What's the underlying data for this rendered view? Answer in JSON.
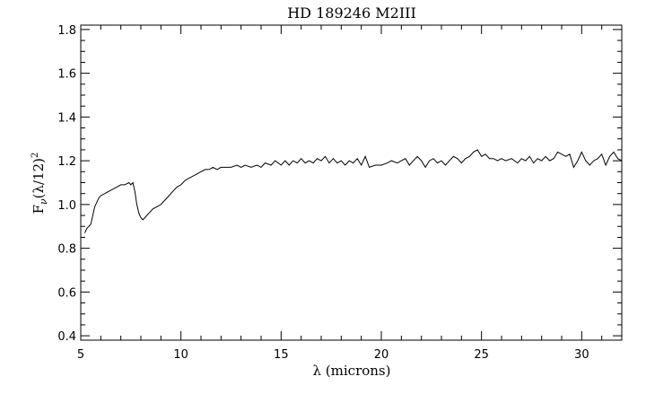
{
  "chart_data": {
    "type": "line",
    "title": "HD 189246  M2III",
    "xlabel": "λ (microns)",
    "ylabel": "F_ν(λ/12)²",
    "xlim": [
      5,
      32
    ],
    "ylim": [
      0.38,
      1.82
    ],
    "xticks": [
      5,
      10,
      15,
      20,
      25,
      30
    ],
    "yticks": [
      0.4,
      0.6,
      0.8,
      1.0,
      1.2,
      1.4,
      1.6,
      1.8
    ],
    "series": [
      {
        "color": "#000000",
        "points": [
          [
            5.2,
            0.87
          ],
          [
            5.3,
            0.89
          ],
          [
            5.4,
            0.9
          ],
          [
            5.5,
            0.91
          ],
          [
            5.6,
            0.95
          ],
          [
            5.7,
            0.99
          ],
          [
            5.8,
            1.01
          ],
          [
            5.9,
            1.03
          ],
          [
            6.0,
            1.04
          ],
          [
            6.2,
            1.05
          ],
          [
            6.4,
            1.06
          ],
          [
            6.6,
            1.07
          ],
          [
            6.8,
            1.08
          ],
          [
            7.0,
            1.09
          ],
          [
            7.2,
            1.09
          ],
          [
            7.4,
            1.1
          ],
          [
            7.5,
            1.09
          ],
          [
            7.6,
            1.1
          ],
          [
            7.7,
            1.06
          ],
          [
            7.8,
            1.0
          ],
          [
            7.9,
            0.96
          ],
          [
            8.0,
            0.94
          ],
          [
            8.1,
            0.93
          ],
          [
            8.2,
            0.94
          ],
          [
            8.4,
            0.96
          ],
          [
            8.6,
            0.98
          ],
          [
            8.8,
            0.99
          ],
          [
            9.0,
            1.0
          ],
          [
            9.2,
            1.02
          ],
          [
            9.4,
            1.04
          ],
          [
            9.6,
            1.06
          ],
          [
            9.8,
            1.08
          ],
          [
            10.0,
            1.09
          ],
          [
            10.2,
            1.11
          ],
          [
            10.4,
            1.12
          ],
          [
            10.6,
            1.13
          ],
          [
            10.8,
            1.14
          ],
          [
            11.0,
            1.15
          ],
          [
            11.2,
            1.16
          ],
          [
            11.4,
            1.16
          ],
          [
            11.6,
            1.17
          ],
          [
            11.8,
            1.16
          ],
          [
            12.0,
            1.17
          ],
          [
            12.2,
            1.17
          ],
          [
            12.5,
            1.17
          ],
          [
            12.8,
            1.18
          ],
          [
            13.0,
            1.17
          ],
          [
            13.2,
            1.18
          ],
          [
            13.5,
            1.17
          ],
          [
            13.8,
            1.18
          ],
          [
            14.0,
            1.17
          ],
          [
            14.2,
            1.19
          ],
          [
            14.5,
            1.18
          ],
          [
            14.7,
            1.2
          ],
          [
            15.0,
            1.18
          ],
          [
            15.2,
            1.2
          ],
          [
            15.4,
            1.18
          ],
          [
            15.6,
            1.2
          ],
          [
            15.8,
            1.19
          ],
          [
            16.0,
            1.21
          ],
          [
            16.2,
            1.19
          ],
          [
            16.4,
            1.2
          ],
          [
            16.6,
            1.19
          ],
          [
            16.8,
            1.21
          ],
          [
            17.0,
            1.2
          ],
          [
            17.2,
            1.22
          ],
          [
            17.4,
            1.19
          ],
          [
            17.6,
            1.21
          ],
          [
            17.8,
            1.19
          ],
          [
            18.0,
            1.2
          ],
          [
            18.2,
            1.18
          ],
          [
            18.4,
            1.2
          ],
          [
            18.6,
            1.19
          ],
          [
            18.8,
            1.21
          ],
          [
            19.0,
            1.18
          ],
          [
            19.2,
            1.22
          ],
          [
            19.4,
            1.17
          ],
          [
            19.7,
            1.18
          ],
          [
            20.0,
            1.18
          ],
          [
            20.3,
            1.19
          ],
          [
            20.5,
            1.2
          ],
          [
            20.8,
            1.19
          ],
          [
            21.0,
            1.2
          ],
          [
            21.2,
            1.21
          ],
          [
            21.4,
            1.18
          ],
          [
            21.6,
            1.2
          ],
          [
            21.8,
            1.22
          ],
          [
            22.0,
            1.2
          ],
          [
            22.2,
            1.17
          ],
          [
            22.4,
            1.2
          ],
          [
            22.6,
            1.21
          ],
          [
            22.8,
            1.19
          ],
          [
            23.0,
            1.2
          ],
          [
            23.2,
            1.18
          ],
          [
            23.4,
            1.2
          ],
          [
            23.6,
            1.22
          ],
          [
            23.8,
            1.21
          ],
          [
            24.0,
            1.19
          ],
          [
            24.2,
            1.21
          ],
          [
            24.4,
            1.22
          ],
          [
            24.6,
            1.24
          ],
          [
            24.8,
            1.25
          ],
          [
            25.0,
            1.22
          ],
          [
            25.2,
            1.23
          ],
          [
            25.4,
            1.21
          ],
          [
            25.6,
            1.21
          ],
          [
            25.8,
            1.2
          ],
          [
            26.0,
            1.21
          ],
          [
            26.2,
            1.2
          ],
          [
            26.5,
            1.21
          ],
          [
            26.8,
            1.19
          ],
          [
            27.0,
            1.21
          ],
          [
            27.2,
            1.2
          ],
          [
            27.4,
            1.22
          ],
          [
            27.6,
            1.19
          ],
          [
            27.8,
            1.21
          ],
          [
            28.0,
            1.2
          ],
          [
            28.2,
            1.22
          ],
          [
            28.4,
            1.2
          ],
          [
            28.6,
            1.21
          ],
          [
            28.8,
            1.24
          ],
          [
            29.0,
            1.23
          ],
          [
            29.2,
            1.22
          ],
          [
            29.4,
            1.23
          ],
          [
            29.6,
            1.17
          ],
          [
            29.8,
            1.2
          ],
          [
            30.0,
            1.24
          ],
          [
            30.2,
            1.2
          ],
          [
            30.4,
            1.18
          ],
          [
            30.6,
            1.2
          ],
          [
            30.8,
            1.21
          ],
          [
            31.0,
            1.23
          ],
          [
            31.2,
            1.18
          ],
          [
            31.4,
            1.22
          ],
          [
            31.6,
            1.24
          ],
          [
            31.8,
            1.21
          ],
          [
            32.0,
            1.2
          ]
        ]
      }
    ],
    "grid": false,
    "legend": "none"
  }
}
